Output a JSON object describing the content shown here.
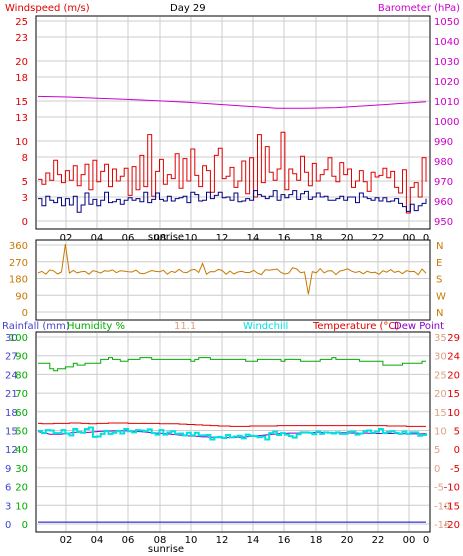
{
  "chart_data": [
    {
      "type": "line",
      "title": "Day 29",
      "left_axis_label": "Windspeed (m/s)",
      "right_axis_label": "Barometer (hPa)",
      "x_ticks": [
        "02",
        "04",
        "06",
        "08",
        "10",
        "12",
        "14",
        "16",
        "18",
        "20",
        "22",
        "00",
        "0"
      ],
      "sunrise_label": "sunrise",
      "y_left_ticks": [
        0,
        3,
        5,
        8,
        10,
        13,
        15,
        18,
        20,
        23,
        25
      ],
      "y_left_range": [
        0,
        25
      ],
      "y_right_ticks": [
        950,
        960,
        970,
        980,
        990,
        1000,
        1010,
        1020,
        1030,
        1040,
        1050
      ],
      "y_right_range": [
        950,
        1050
      ],
      "grid": true,
      "series": [
        {
          "name": "Windspeed (m/s)",
          "axis": "left",
          "color": "#e00000",
          "style": "step",
          "values": [
            5.2,
            4.6,
            6.0,
            5.1,
            7.6,
            5.8,
            4.8,
            6.3,
            5.1,
            6.9,
            4.4,
            5.8,
            7.1,
            3.9,
            7.6,
            4.9,
            6.2,
            7.1,
            4.3,
            6.5,
            5.0,
            5.6,
            6.6,
            3.2,
            6.8,
            3.9,
            8.2,
            4.3,
            10.8,
            3.1,
            6.2,
            7.7,
            4.6,
            5.8,
            5.3,
            8.4,
            4.1,
            7.8,
            5.0,
            9.0,
            5.7,
            4.3,
            6.9,
            6.3,
            3.6,
            8.2,
            9.1,
            5.3,
            5.6,
            6.7,
            4.2,
            5.0,
            7.5,
            3.4,
            7.9,
            3.0,
            10.8,
            4.8,
            9.3,
            6.1,
            5.1,
            6.5,
            11.1,
            3.9,
            6.5,
            5.9,
            5.1,
            8.1,
            6.1,
            4.4,
            7.2,
            5.0,
            5.8,
            6.4,
            7.9,
            5.6,
            4.9,
            7.3,
            5.8,
            6.5,
            4.2,
            5.0,
            6.3,
            4.9,
            3.7,
            6.1,
            5.5,
            5.7,
            6.6,
            5.4,
            6.2,
            4.2,
            3.5,
            6.4,
            1.0,
            4.2,
            4.8,
            3.0,
            7.9,
            4.9
          ]
        },
        {
          "name": "Wind gust",
          "axis": "left",
          "color": "#000080",
          "style": "step",
          "values": [
            2.8,
            1.9,
            3.1,
            2.6,
            2.3,
            2.9,
            1.9,
            2.8,
            2.0,
            3.1,
            1.1,
            2.0,
            3.5,
            2.1,
            2.7,
            1.9,
            2.6,
            3.6,
            2.3,
            2.4,
            2.7,
            2.1,
            2.6,
            2.9,
            2.6,
            2.8,
            2.4,
            3.6,
            2.3,
            2.7,
            3.5,
            2.7,
            2.5,
            3.1,
            2.5,
            2.8,
            2.9,
            3.1,
            2.3,
            3.6,
            3.3,
            2.5,
            2.6,
            3.6,
            2.8,
            3.2,
            3.6,
            2.9,
            3.0,
            2.6,
            3.5,
            2.4,
            2.5,
            2.8,
            2.6,
            3.8,
            3.3,
            3.1,
            2.8,
            3.1,
            3.8,
            2.6,
            3.3,
            2.9,
            3.3,
            3.8,
            2.7,
            3.4,
            3.7,
            2.7,
            3.0,
            3.5,
            3.0,
            3.1,
            2.6,
            2.6,
            2.8,
            3.1,
            2.6,
            3.0,
            3.0,
            2.3,
            3.5,
            3.0,
            2.8,
            2.6,
            2.9,
            2.5,
            2.9,
            2.4,
            2.5,
            2.8,
            2.2,
            1.8,
            1.2,
            2.1,
            1.3,
            1.9,
            2.2,
            2.8
          ]
        },
        {
          "name": "Barometer (hPa)",
          "axis": "right",
          "color": "#cc00cc",
          "style": "line",
          "values": [
            1012.3,
            1012.0,
            1011.4,
            1010.8,
            1010.1,
            1009.4,
            1008.4,
            1007.4,
            1006.4,
            1006.4,
            1006.7,
            1007.6,
            1008.6,
            1009.6
          ]
        }
      ]
    },
    {
      "type": "line",
      "left_axis_label": "",
      "y_left_ticks": [
        0,
        90,
        180,
        270,
        360
      ],
      "y_left_range": [
        0,
        360
      ],
      "y_right_ticks": [
        "N",
        "W",
        "S",
        "E",
        "N"
      ],
      "grid": true,
      "series": [
        {
          "name": "Wind direction",
          "color": "#c87800",
          "style": "line",
          "values": [
            210,
            218,
            203,
            226,
            221,
            204,
            215,
            365,
            209,
            223,
            210,
            216,
            218,
            203,
            222,
            217,
            209,
            222,
            219,
            226,
            211,
            222,
            220,
            216,
            215,
            225,
            208,
            206,
            214,
            223,
            218,
            216,
            224,
            203,
            218,
            213,
            229,
            214,
            211,
            225,
            229,
            212,
            261,
            203,
            217,
            216,
            229,
            223,
            203,
            220,
            204,
            215,
            218,
            212,
            212,
            224,
            209,
            201,
            227,
            225,
            228,
            231,
            212,
            204,
            209,
            238,
            231,
            211,
            215,
            95,
            217,
            210,
            233,
            210,
            221,
            222,
            201,
            220,
            225,
            232,
            220,
            212,
            218,
            205,
            219,
            211,
            214,
            202,
            222,
            214,
            228,
            213,
            219,
            206,
            222,
            217,
            218,
            201,
            231,
            208
          ]
        }
      ]
    },
    {
      "type": "line",
      "legend": [
        "Rainfall (mm)",
        "Humidity %",
        "11.1",
        "Windchill",
        "Temperature (°C)",
        "Dew Point"
      ],
      "x_ticks": [
        "02",
        "04",
        "06",
        "08",
        "10",
        "12",
        "14",
        "16",
        "18",
        "20",
        "22",
        "00",
        "0"
      ],
      "sunrise_label": "sunrise",
      "rain_ticks": [
        0,
        3,
        6,
        9,
        12,
        15,
        18,
        21,
        24,
        27,
        30
      ],
      "humidity_ticks": [
        0,
        10,
        20,
        30,
        40,
        50,
        60,
        70,
        80,
        90,
        100
      ],
      "temp_ticks_c": [
        -15,
        -10,
        -5,
        0,
        5,
        10,
        15,
        20,
        25,
        30,
        35
      ],
      "temp_ticks_f": [
        -20,
        -15,
        -10,
        -5,
        0,
        5,
        10,
        15,
        20,
        24,
        29
      ],
      "humidity_range": [
        0,
        100
      ],
      "temp_range": [
        -15,
        35
      ],
      "rain_range": [
        0,
        30
      ],
      "grid": true,
      "series": [
        {
          "name": "Humidity %",
          "axis": "humidity",
          "color": "#00aa00",
          "style": "step",
          "values": [
            86,
            86,
            86,
            83,
            82,
            83,
            83,
            84,
            84,
            86,
            85,
            85,
            86,
            86,
            86,
            86,
            88,
            88,
            89,
            88,
            88,
            87,
            87,
            88,
            88,
            88,
            89,
            89,
            89,
            88,
            88,
            88,
            88,
            88,
            88,
            88,
            88,
            88,
            88,
            87,
            88,
            89,
            89,
            89,
            88,
            88,
            88,
            88,
            88,
            88,
            88,
            88,
            88,
            87,
            87,
            87,
            88,
            88,
            88,
            88,
            88,
            88,
            87,
            88,
            88,
            88,
            88,
            87,
            87,
            87,
            87,
            87,
            88,
            88,
            88,
            89,
            88,
            88,
            88,
            88,
            88,
            88,
            87,
            87,
            87,
            87,
            87,
            87,
            85,
            85,
            85,
            85,
            85,
            86,
            86,
            86,
            86,
            86,
            87,
            87
          ]
        },
        {
          "name": "Temperature (°C)",
          "axis": "temp",
          "color": "#e00000",
          "style": "step",
          "values": [
            11.9,
            11.8,
            11.8,
            11.8,
            11.9,
            11.9,
            11.9,
            11.9,
            12.0,
            12.0,
            12.0,
            11.9,
            11.9,
            11.8,
            11.8,
            11.9,
            11.9,
            11.9,
            12.0,
            12.0,
            12.0,
            12.0,
            12.0,
            11.9,
            11.9,
            11.9,
            11.9,
            11.9,
            11.9,
            11.9,
            11.9,
            11.8,
            11.8,
            11.8,
            11.8,
            11.8,
            11.7,
            11.7,
            11.6,
            11.6,
            11.5,
            11.5,
            11.4,
            11.4,
            11.3,
            11.3,
            11.2,
            11.2,
            11.2,
            11.1,
            11.1,
            11.1,
            11.1,
            11.1,
            11.2,
            11.2,
            11.2,
            11.2,
            11.2,
            11.2,
            11.2,
            11.3,
            11.3,
            11.3,
            11.3,
            11.3,
            11.3,
            11.3,
            11.3,
            11.3,
            11.3,
            11.3,
            11.3,
            11.3,
            11.3,
            11.3,
            11.3,
            11.3,
            11.3,
            11.3,
            11.3,
            11.3,
            11.3,
            11.3,
            11.3,
            11.3,
            11.3,
            11.3,
            11.3,
            11.2,
            11.2,
            11.2,
            11.2,
            11.2,
            11.1,
            11.1,
            11.1,
            11.1,
            11.1,
            11.1
          ]
        },
        {
          "name": "Dew Point",
          "axis": "temp",
          "color": "#8800cc",
          "style": "line",
          "values": [
            9.7,
            9.5,
            9.3,
            9.0,
            9.0,
            9.0,
            9.0,
            9.2,
            9.3,
            9.5,
            9.5,
            9.5,
            9.5,
            9.5,
            9.6,
            9.7,
            9.8,
            9.8,
            9.8,
            9.9,
            9.9,
            9.9,
            9.9,
            9.9,
            9.8,
            9.8,
            9.7,
            9.6,
            9.5,
            9.4,
            9.3,
            9.3,
            9.2,
            9.1,
            9.0,
            8.9,
            8.8,
            8.7,
            8.6,
            8.5,
            8.5,
            8.4,
            8.3,
            8.3,
            8.2,
            8.2,
            8.1,
            8.1,
            8.1,
            8.1,
            8.1,
            8.2,
            8.2,
            8.3,
            8.4,
            8.5,
            8.6,
            8.7,
            8.8,
            8.9,
            9.0,
            9.1,
            9.2,
            9.2,
            9.3,
            9.3,
            9.3,
            9.3,
            9.4,
            9.4,
            9.4,
            9.5,
            9.5,
            9.5,
            9.4,
            9.4,
            9.4,
            9.4,
            9.4,
            9.4,
            9.3,
            9.3,
            9.3,
            9.3,
            9.3,
            9.2,
            9.2,
            9.2,
            9.2,
            9.2,
            9.2,
            9.2,
            9.2,
            9.2,
            9.1,
            9.1,
            9.1,
            9.1,
            9.1,
            9.2
          ]
        },
        {
          "name": "Windchill",
          "axis": "temp",
          "color": "#00e0e0",
          "style": "step",
          "values": [
            9.9,
            9.3,
            10.1,
            10.0,
            9.3,
            9.3,
            10.1,
            9.2,
            8.7,
            10.4,
            9.6,
            9.4,
            10.4,
            10.8,
            8.3,
            8.4,
            9.1,
            9.9,
            9.1,
            9.4,
            9.9,
            9.2,
            10.4,
            9.8,
            9.5,
            10.1,
            10.0,
            9.8,
            10.3,
            9.3,
            8.9,
            10.1,
            8.9,
            9.5,
            9.8,
            9.1,
            9.2,
            8.7,
            9.4,
            8.7,
            9.4,
            8.7,
            8.7,
            8.8,
            7.6,
            8.2,
            8.3,
            8.0,
            8.8,
            8.2,
            8.4,
            8.6,
            7.9,
            8.9,
            8.6,
            8.5,
            8.2,
            8.4,
            7.6,
            9.3,
            9.7,
            8.8,
            9.3,
            8.9,
            8.5,
            8.1,
            9.0,
            9.5,
            9.5,
            9.4,
            9.0,
            9.7,
            9.1,
            9.5,
            9.4,
            9.2,
            9.5,
            9.1,
            9.1,
            9.6,
            9.7,
            8.9,
            9.2,
            9.8,
            10.0,
            9.4,
            9.7,
            10.4,
            9.3,
            9.6,
            9.8,
            9.4,
            9.1,
            9.7,
            9.1,
            9.5,
            9.5,
            8.6,
            8.8,
            9.3
          ]
        },
        {
          "name": "Rainfall (mm)",
          "axis": "rain",
          "color": "#0000cc",
          "style": "line",
          "values": [
            0.3,
            0.3
          ]
        }
      ]
    }
  ],
  "colors": {
    "red": "#e00000",
    "magenta": "#cc00cc",
    "navy": "#000080",
    "orange": "#c87800",
    "blue": "#4444cc",
    "green": "#00aa00",
    "cyan": "#00e0e0",
    "purple": "#8800cc",
    "grid": "#cccccc"
  }
}
